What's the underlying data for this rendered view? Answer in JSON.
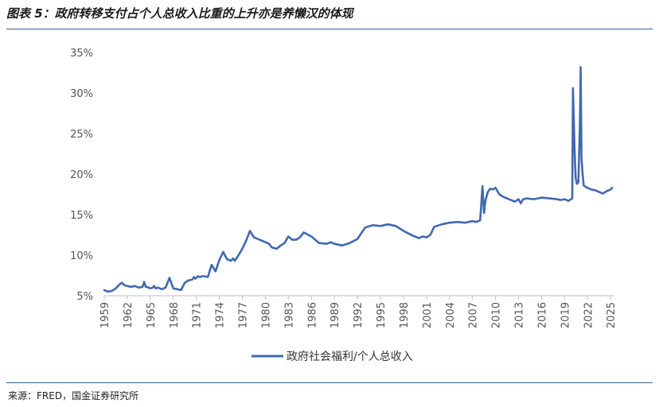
{
  "title": "图表 5：政府转移支付占个人总收入比重的上升亦是养懒汉的体现",
  "source": "来源：FRED，国金证券研究所",
  "chart_data": {
    "type": "line",
    "title": "",
    "xlabel": "",
    "ylabel": "",
    "ylim": [
      5,
      35
    ],
    "yticks": [
      "5%",
      "10%",
      "15%",
      "20%",
      "25%",
      "30%",
      "35%"
    ],
    "ytick_values": [
      5,
      10,
      15,
      20,
      25,
      30,
      35
    ],
    "xlim": [
      1959,
      2025.5
    ],
    "xticks": [
      "1959",
      "1962",
      "1965",
      "1968",
      "1971",
      "1974",
      "1977",
      "1980",
      "1983",
      "1986",
      "1989",
      "1992",
      "1995",
      "1998",
      "2001",
      "2004",
      "2007",
      "2010",
      "2013",
      "2016",
      "2019",
      "2022",
      "2025"
    ],
    "grid": false,
    "legend_position": "bottom-center",
    "color": "#4169b1",
    "series": [
      {
        "name": "政府社会福利/个人总收入",
        "x": [
          1959.0,
          1959.5,
          1960.0,
          1960.5,
          1961.0,
          1961.3,
          1961.6,
          1962.0,
          1962.5,
          1963.0,
          1963.5,
          1964.0,
          1964.2,
          1964.4,
          1964.8,
          1965.0,
          1965.3,
          1965.5,
          1965.7,
          1966.0,
          1966.5,
          1967.0,
          1967.5,
          1968.0,
          1968.5,
          1969.0,
          1969.5,
          1970.0,
          1970.5,
          1970.7,
          1970.9,
          1971.2,
          1971.5,
          1971.7,
          1972.0,
          1972.5,
          1973.0,
          1973.5,
          1974.0,
          1974.5,
          1975.0,
          1975.3,
          1975.5,
          1975.8,
          1976.0,
          1976.5,
          1977.0,
          1977.5,
          1978.0,
          1978.5,
          1979.0,
          1979.5,
          1980.0,
          1980.5,
          1980.8,
          1981.0,
          1981.5,
          1982.0,
          1982.5,
          1983.0,
          1983.5,
          1984.0,
          1984.5,
          1985.0,
          1986.0,
          1987.0,
          1988.0,
          1988.5,
          1989.0,
          1990.0,
          1991.0,
          1992.0,
          1993.0,
          1994.0,
          1995.0,
          1996.0,
          1997.0,
          1998.0,
          1999.0,
          2000.0,
          2000.5,
          2001.0,
          2001.5,
          2002.0,
          2003.0,
          2004.0,
          2005.0,
          2006.0,
          2007.0,
          2007.5,
          2008.0,
          2008.3,
          2008.5,
          2008.7,
          2009.0,
          2009.3,
          2009.6,
          2010.0,
          2010.5,
          2011.0,
          2012.0,
          2012.5,
          2013.0,
          2013.3,
          2013.6,
          2014.0,
          2015.0,
          2016.0,
          2017.0,
          2018.0,
          2018.5,
          2019.0,
          2019.5,
          2020.0,
          2020.1,
          2020.3,
          2020.45,
          2020.6,
          2020.8,
          2021.0,
          2021.1,
          2021.2,
          2021.35,
          2021.5,
          2021.8,
          2022.0,
          2022.5,
          2023.0,
          2023.5,
          2024.0,
          2024.5,
          2025.0,
          2025.2
        ],
        "values": [
          5.7,
          5.5,
          5.6,
          5.9,
          6.4,
          6.6,
          6.3,
          6.2,
          6.1,
          6.2,
          6.0,
          6.1,
          6.7,
          6.1,
          6.0,
          5.9,
          6.0,
          6.2,
          5.9,
          6.0,
          5.8,
          6.0,
          7.2,
          5.9,
          5.8,
          5.7,
          6.6,
          6.9,
          7.0,
          7.3,
          7.1,
          7.4,
          7.3,
          7.4,
          7.4,
          7.3,
          8.8,
          8.0,
          9.4,
          10.4,
          9.5,
          9.4,
          9.3,
          9.6,
          9.3,
          10.0,
          10.8,
          11.8,
          13.0,
          12.2,
          12.0,
          11.8,
          11.6,
          11.4,
          11.0,
          10.9,
          10.8,
          11.2,
          11.5,
          12.3,
          11.9,
          11.9,
          12.2,
          12.8,
          12.3,
          11.5,
          11.4,
          11.6,
          11.4,
          11.2,
          11.5,
          12.0,
          13.4,
          13.7,
          13.6,
          13.8,
          13.6,
          13.0,
          12.5,
          12.1,
          12.3,
          12.2,
          12.5,
          13.5,
          13.8,
          14.0,
          14.1,
          14.0,
          14.2,
          14.1,
          14.3,
          18.5,
          15.2,
          16.8,
          17.8,
          18.2,
          18.1,
          18.3,
          17.5,
          17.2,
          16.8,
          16.6,
          16.9,
          16.4,
          16.9,
          17.0,
          16.9,
          17.1,
          17.0,
          16.9,
          16.8,
          16.9,
          16.7,
          17.0,
          30.6,
          23.0,
          19.5,
          18.8,
          19.0,
          26.0,
          33.2,
          22.0,
          20.0,
          18.6,
          18.4,
          18.3,
          18.1,
          18.0,
          17.8,
          17.6,
          17.9,
          18.1,
          18.3
        ]
      }
    ]
  }
}
